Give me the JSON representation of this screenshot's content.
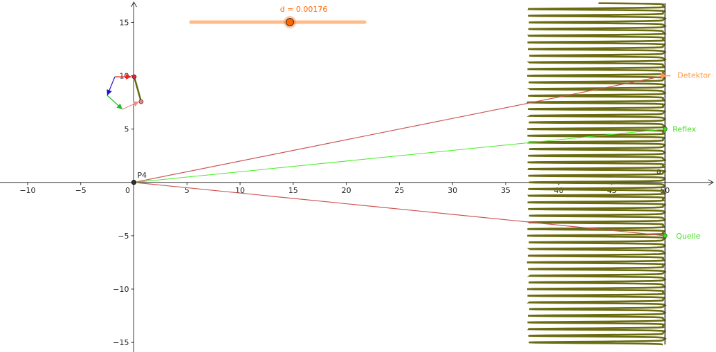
{
  "slider": {
    "label": "d = 0.00176",
    "name": "d",
    "value": 0.00176,
    "color": "#ffbb88",
    "knob_color": "#ff6600",
    "fraction": 0.57
  },
  "axes": {
    "x_range": [
      -12.6,
      54.8
    ],
    "y_range": [
      -15.9,
      17.1
    ],
    "x_ticks": [
      "−10",
      "−5",
      "0",
      "5",
      "10",
      "15",
      "20",
      "25",
      "30",
      "35",
      "40",
      "45",
      "50"
    ],
    "x_tick_values": [
      -10,
      -5,
      0,
      5,
      10,
      15,
      20,
      25,
      30,
      35,
      40,
      45,
      50
    ],
    "y_ticks": [
      "15",
      "10",
      "5",
      "−5",
      "−10",
      "−15"
    ],
    "y_tick_values": [
      15,
      10,
      5,
      -5,
      -10,
      -15
    ],
    "origin_label": "0"
  },
  "points": {
    "p4": {
      "label": "P4",
      "x": 0,
      "y": 0,
      "color": "#333333"
    },
    "detektor": {
      "label": "Detektor",
      "x": 50,
      "y": 10,
      "color": "#ff9944"
    },
    "reflex": {
      "label": "Reflex",
      "x": 50,
      "y": 5,
      "color": "#44dd22"
    },
    "quelle": {
      "label": "Quelle",
      "x": 50,
      "y": -5,
      "color": "#44dd22"
    },
    "a_label": {
      "label": "a",
      "x": 49.2,
      "y": 1.1
    }
  },
  "lines": {
    "ray_color": "#cc5555",
    "reflex_color": "#44ee22",
    "curve_color": "#6b6b10",
    "screen_color": "#333333"
  },
  "wave": {
    "x_base": 50,
    "amplitude": 12.8,
    "frequency": 1.6,
    "y_min": -15.2,
    "y_max": 16.8
  },
  "widget": {
    "red_color": "#ee2222",
    "blue_color": "#2211cc",
    "green_color": "#22bb22",
    "pink_color": "#ee8888",
    "bar_color": "#666611"
  }
}
